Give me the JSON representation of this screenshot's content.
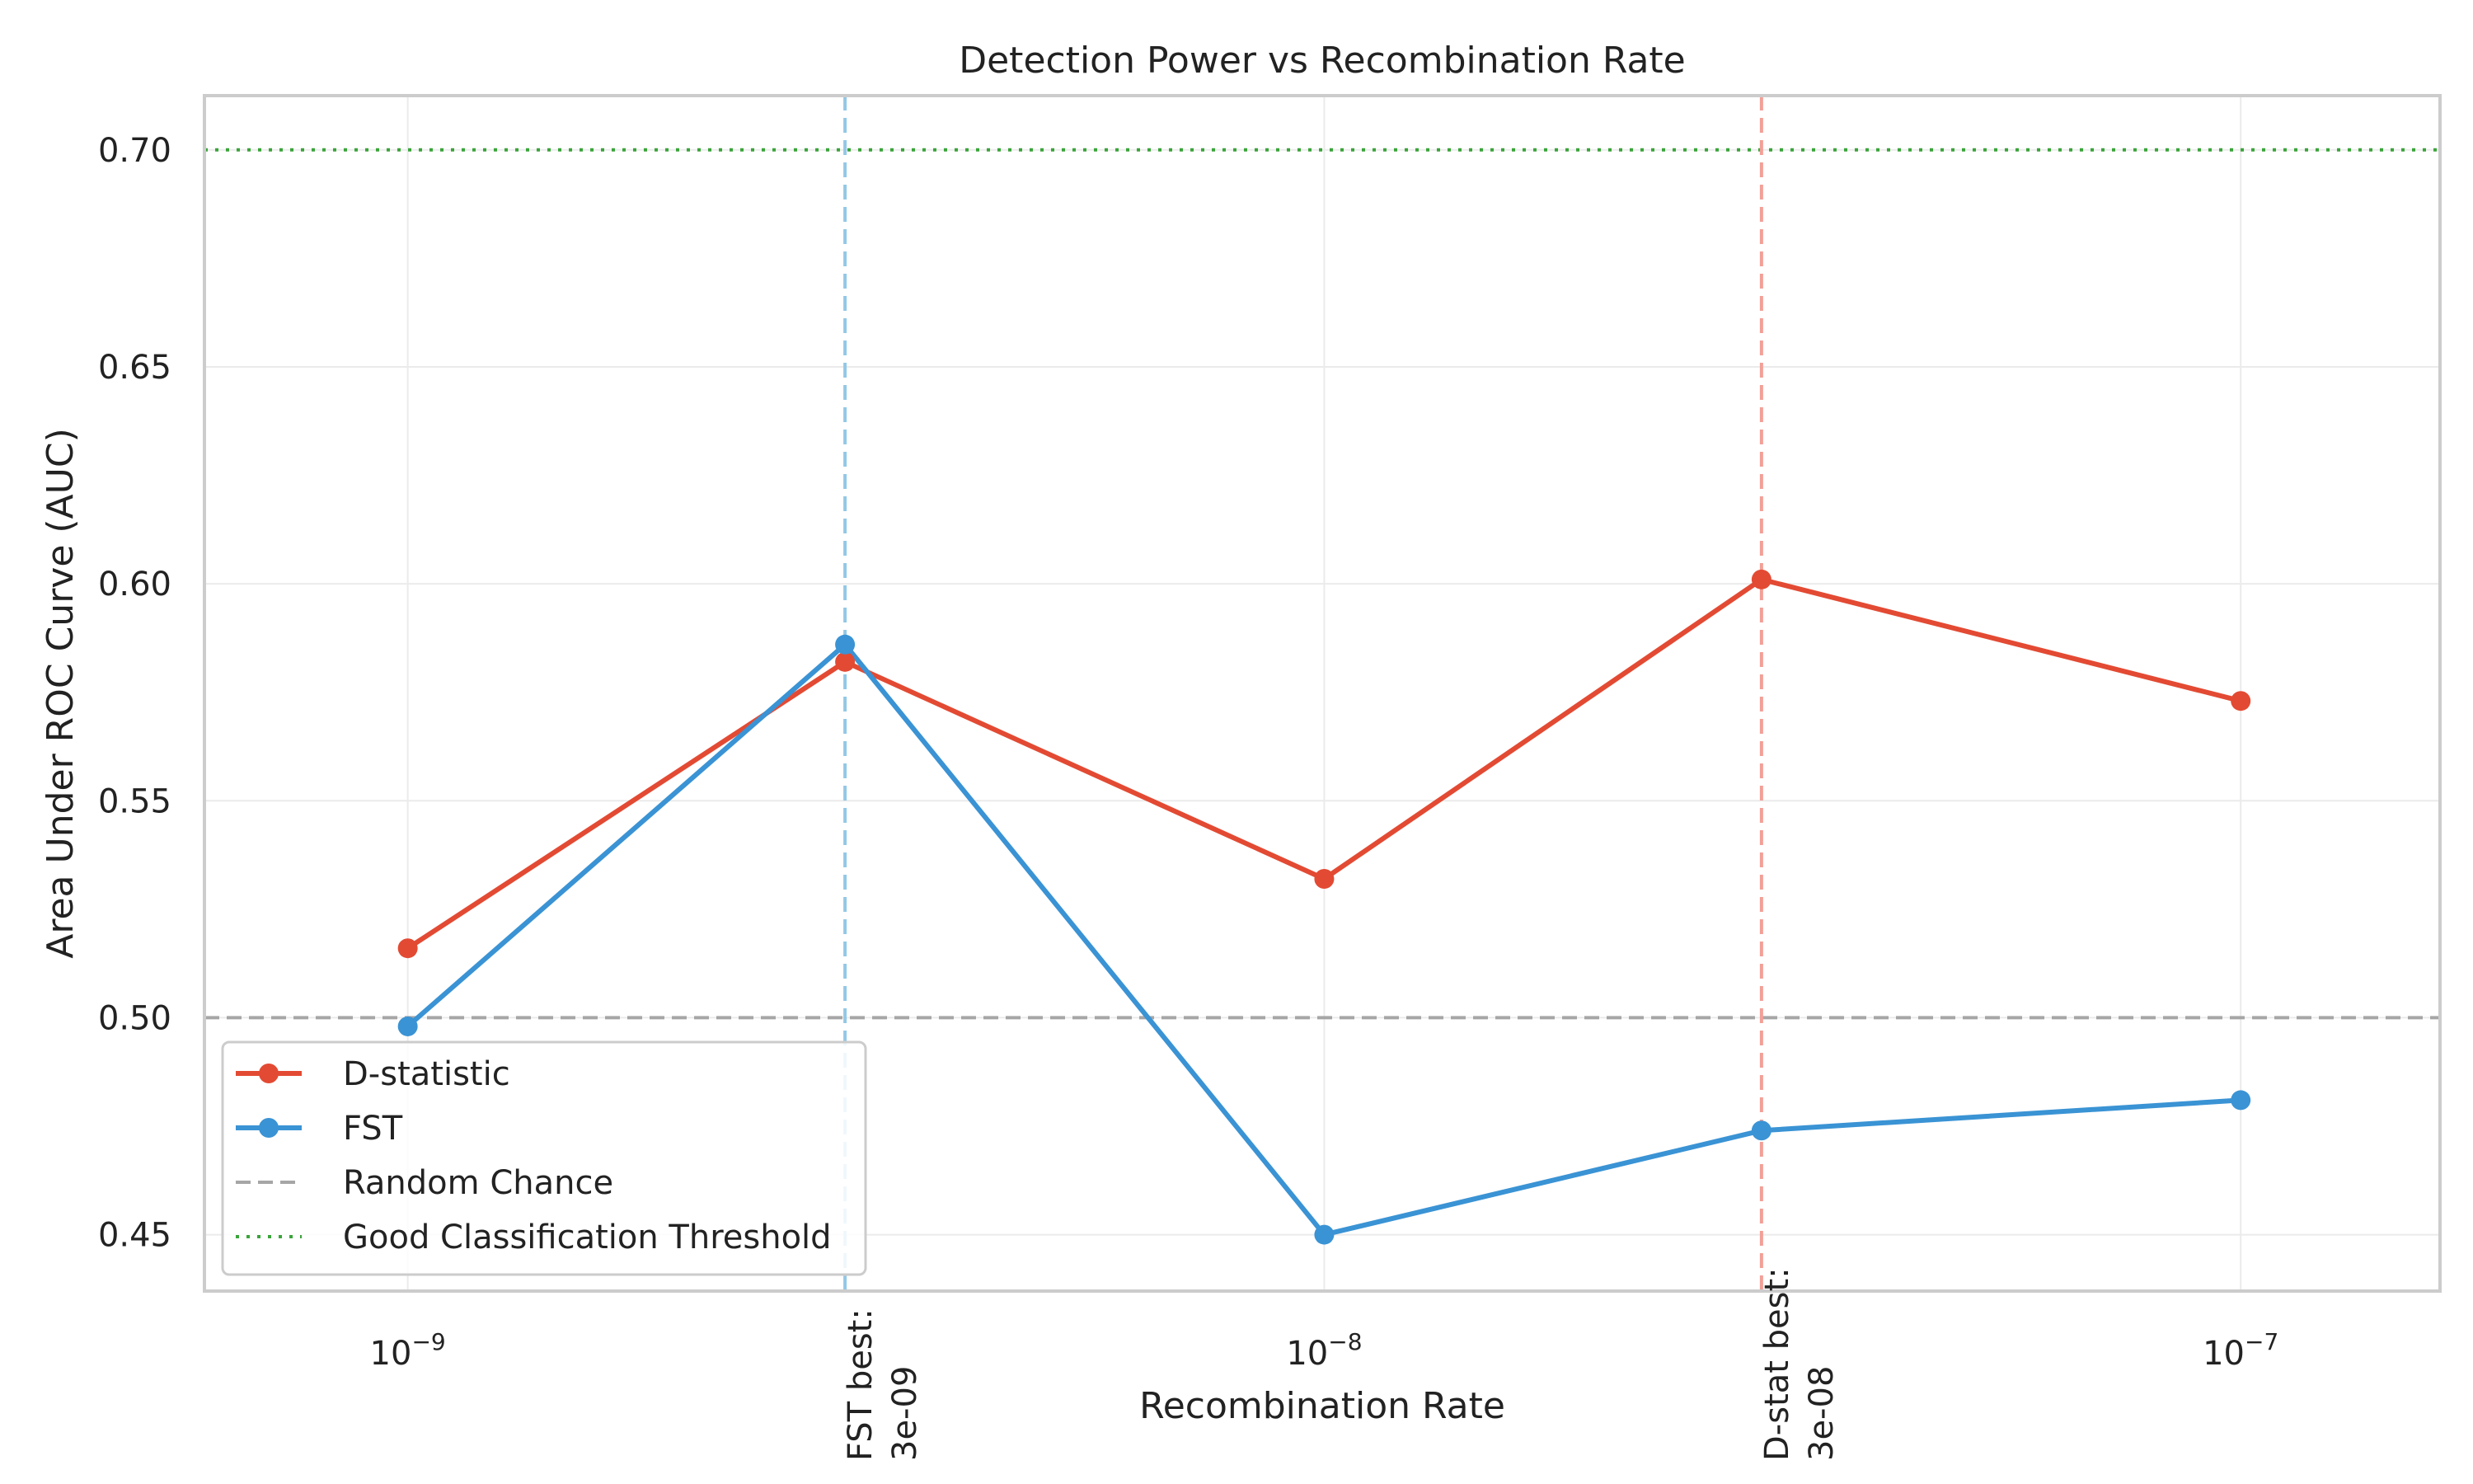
{
  "chart_data": {
    "type": "line",
    "title": "Detection Power vs Recombination Rate",
    "xlabel": "Recombination Rate",
    "ylabel": "Area Under ROC Curve (AUC)",
    "x_scale": "log",
    "xlim": [
      6e-10,
      1.65e-07
    ],
    "ylim": [
      0.437,
      0.7125
    ],
    "x_ticks": [
      1e-09,
      1e-08,
      1e-07
    ],
    "x_tick_labels": [
      {
        "base": "10",
        "exp": "−9"
      },
      {
        "base": "10",
        "exp": "−8"
      },
      {
        "base": "10",
        "exp": "−7"
      }
    ],
    "y_ticks": [
      0.45,
      0.5,
      0.55,
      0.6,
      0.65,
      0.7
    ],
    "y_tick_labels": [
      "0.45",
      "0.50",
      "0.55",
      "0.60",
      "0.65",
      "0.70"
    ],
    "grid": true,
    "x": [
      1e-09,
      3e-09,
      1e-08,
      3e-08,
      1e-07
    ],
    "series": [
      {
        "name": "D-statistic",
        "color": "#e34a33",
        "values": [
          0.516,
          0.582,
          0.532,
          0.601,
          0.573
        ]
      },
      {
        "name": "FST",
        "color": "#3a93d4",
        "values": [
          0.498,
          0.586,
          0.45,
          0.474,
          0.481
        ]
      }
    ],
    "reference_lines": [
      {
        "name": "Random Chance",
        "orientation": "horizontal",
        "value": 0.5,
        "color": "#a6a6a6",
        "style": "dashed"
      },
      {
        "name": "Good Classification Threshold",
        "orientation": "horizontal",
        "value": 0.7,
        "color": "#3aa43a",
        "style": "dotted"
      }
    ],
    "annotations": [
      {
        "x": 3e-09,
        "color": "#93c8e6",
        "text_color": "#3a93d4",
        "lines": [
          "FST best:",
          "3e-09"
        ]
      },
      {
        "x": 3e-08,
        "color": "#f2a097",
        "text_color": "#e34a33",
        "lines": [
          "D-stat best:",
          "3e-08"
        ]
      }
    ],
    "legend": {
      "position": "lower-left",
      "entries": [
        "D-statistic",
        "FST",
        "Random Chance",
        "Good Classification Threshold"
      ]
    }
  }
}
